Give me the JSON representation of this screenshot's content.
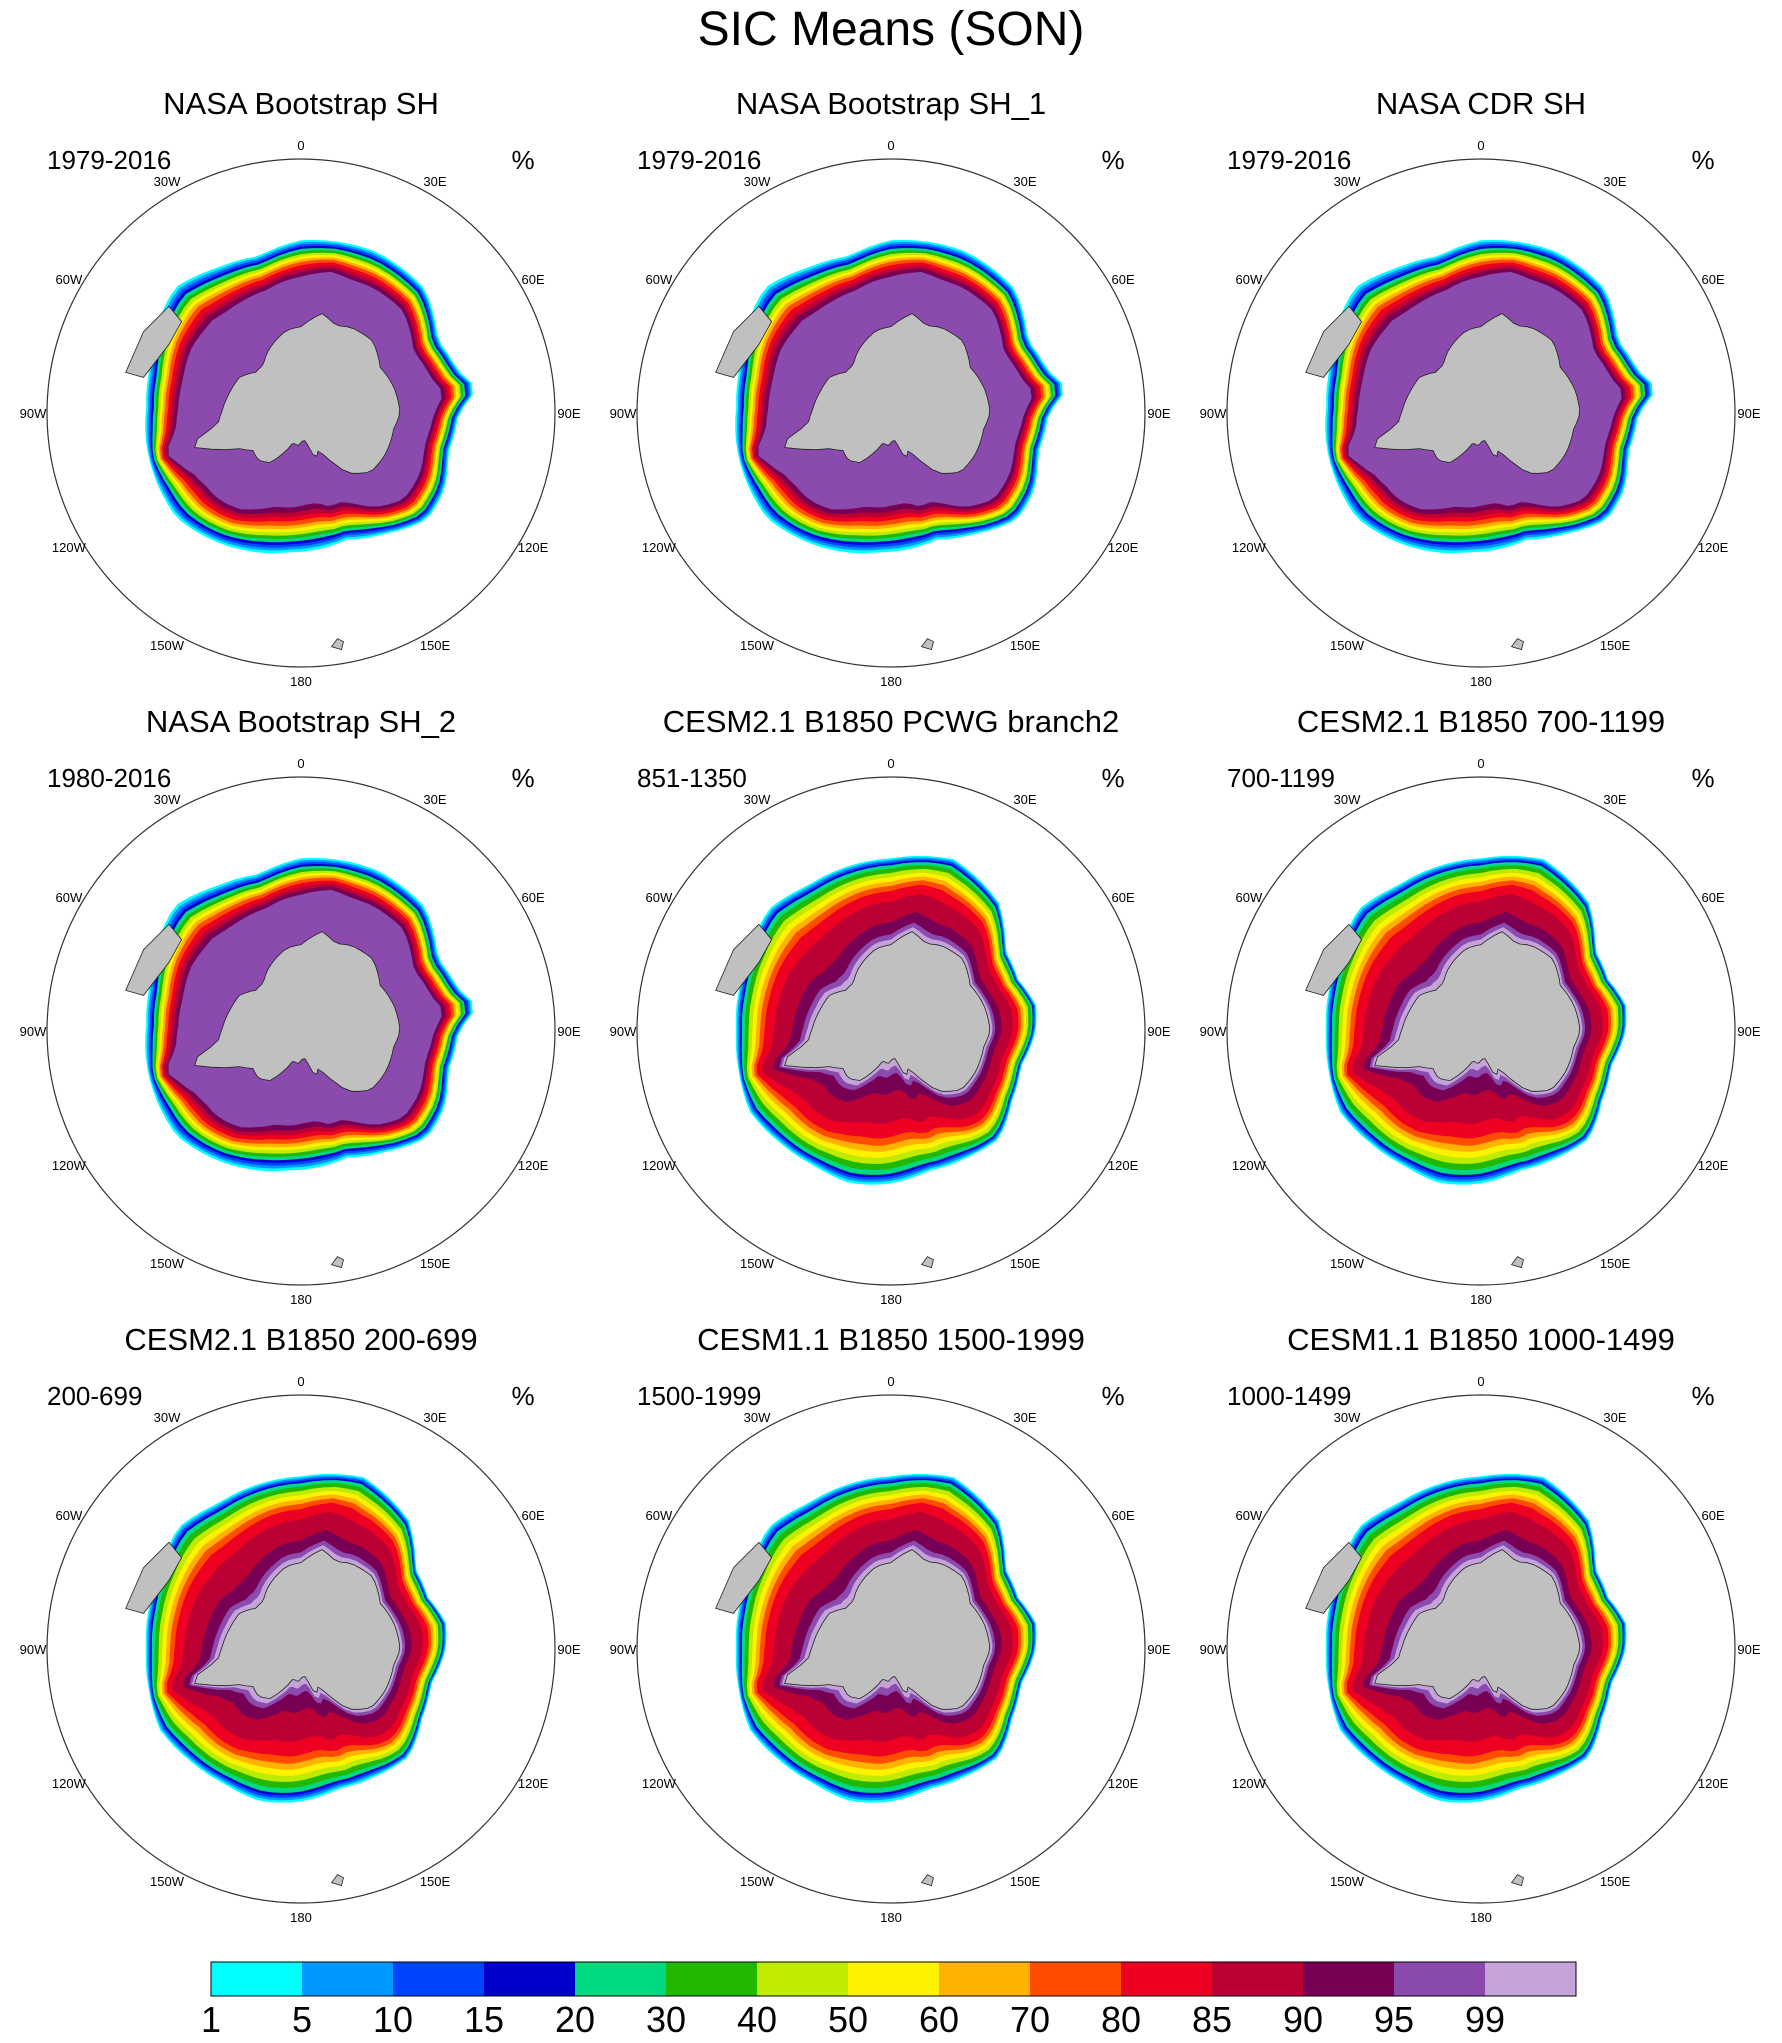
{
  "figure": {
    "title": "SIC Means (SON)",
    "unit": "%"
  },
  "longitude_labels": [
    "0",
    "30E",
    "60E",
    "90E",
    "120E",
    "150E",
    "180",
    "150W",
    "120W",
    "90W",
    "60W",
    "30W"
  ],
  "panels": [
    {
      "title": "NASA Bootstrap SH",
      "period": "1979-2016",
      "source": "obs"
    },
    {
      "title": "NASA Bootstrap SH_1",
      "period": "1979-2016",
      "source": "obs"
    },
    {
      "title": "NASA CDR SH",
      "period": "1979-2016",
      "source": "obs"
    },
    {
      "title": "NASA Bootstrap SH_2",
      "period": "1980-2016",
      "source": "obs"
    },
    {
      "title": "CESM2.1 B1850 PCWG branch2",
      "period": "851-1350",
      "source": "model"
    },
    {
      "title": "CESM2.1 B1850 700-1199",
      "period": "700-1199",
      "source": "model"
    },
    {
      "title": "CESM2.1 B1850 200-699",
      "period": "200-699",
      "source": "model"
    },
    {
      "title": "CESM1.1 B1850 1500-1999",
      "period": "1500-1999",
      "source": "model"
    },
    {
      "title": "CESM1.1 B1850 1000-1499",
      "period": "1000-1499",
      "source": "model"
    }
  ],
  "colorbar": {
    "labels": [
      "1",
      "5",
      "10",
      "15",
      "20",
      "30",
      "40",
      "50",
      "60",
      "70",
      "80",
      "85",
      "90",
      "95",
      "99"
    ],
    "colors": [
      "#00ffff",
      "#0099ff",
      "#0044ff",
      "#0000cc",
      "#00d97e",
      "#22b800",
      "#bfeb00",
      "#fff200",
      "#ffb300",
      "#ff4d00",
      "#ee0022",
      "#bb0033",
      "#770055",
      "#8b4aad",
      "#c4a3d8"
    ]
  },
  "style": {
    "land_color": "#c0c0c0",
    "background": "#ffffff"
  }
}
